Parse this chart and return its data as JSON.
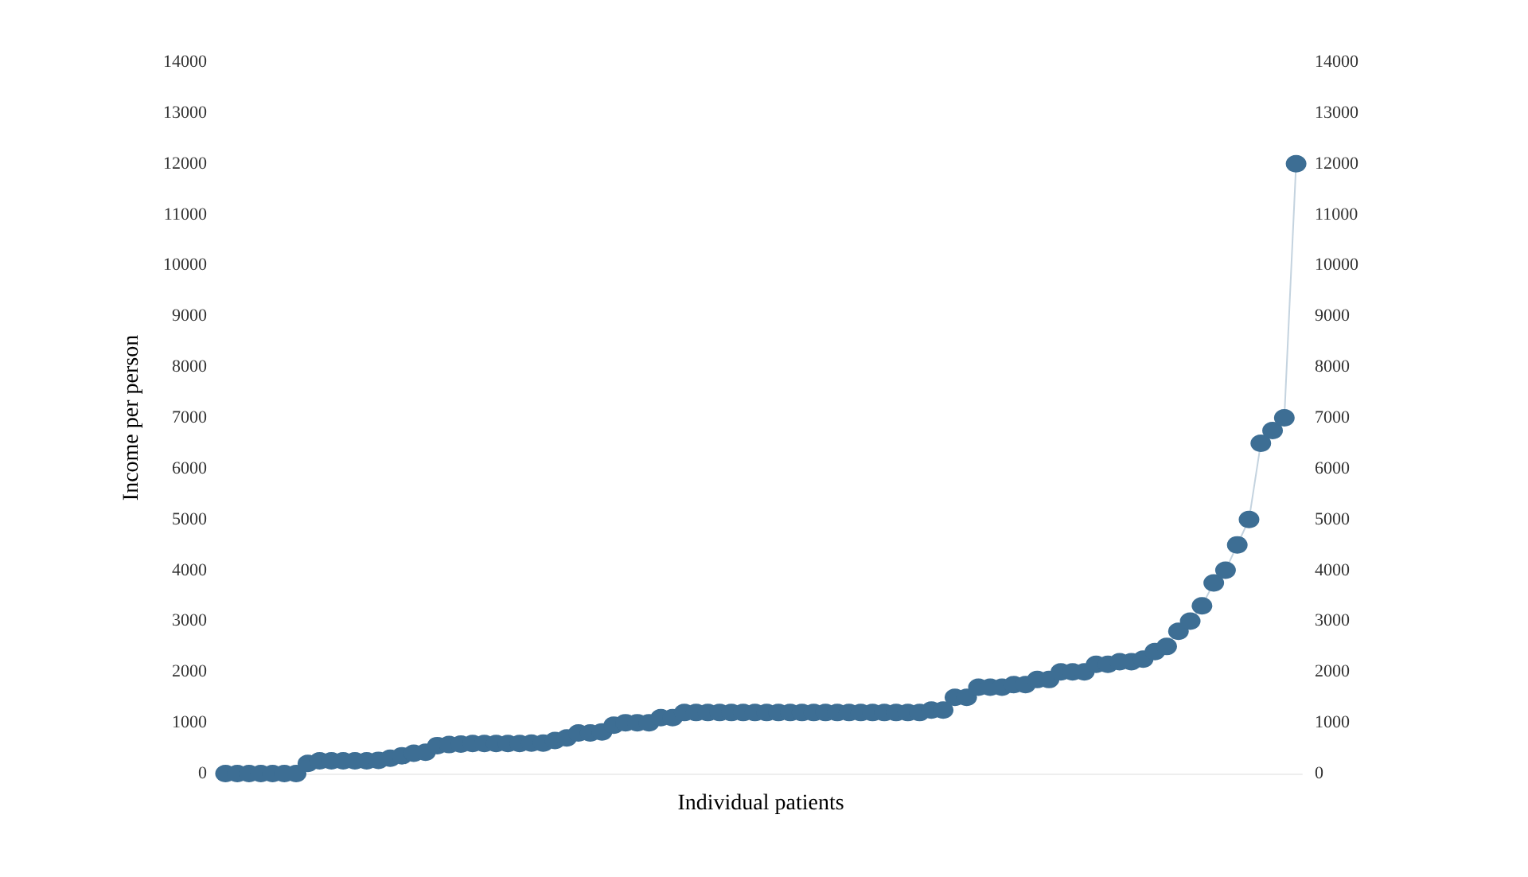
{
  "chart_data": {
    "type": "line",
    "xlabel": "Individual patients",
    "ylabel": "Income per person",
    "categories": [
      null,
      null,
      null,
      null,
      null,
      null,
      null,
      null,
      null,
      null,
      null,
      null,
      null,
      null,
      null,
      null,
      null,
      null,
      null,
      null,
      null,
      null,
      null,
      null,
      null,
      null,
      null,
      null,
      null,
      null,
      null,
      null,
      null,
      null,
      null,
      null,
      null,
      null,
      null,
      null,
      null,
      null,
      null,
      null,
      null,
      null,
      null,
      null,
      null,
      null,
      null,
      null,
      null,
      null,
      null,
      null,
      null,
      null,
      null,
      null,
      null,
      null,
      null,
      null,
      null,
      null,
      null,
      null,
      null,
      null,
      null,
      null,
      null,
      null,
      null,
      null,
      null,
      null,
      null,
      null,
      null,
      null,
      null,
      null,
      null,
      null,
      null,
      null,
      null,
      null,
      null,
      null
    ],
    "series": [
      {
        "color": "#3d6e94",
        "values": [
          0,
          0,
          0,
          0,
          0,
          0,
          0,
          200,
          250,
          250,
          250,
          250,
          250,
          260,
          300,
          350,
          400,
          420,
          550,
          570,
          580,
          590,
          590,
          590,
          590,
          590,
          600,
          600,
          650,
          700,
          800,
          800,
          820,
          950,
          1000,
          1000,
          1000,
          1100,
          1100,
          1200,
          1200,
          1200,
          1200,
          1200,
          1200,
          1200,
          1200,
          1200,
          1200,
          1200,
          1200,
          1200,
          1200,
          1200,
          1200,
          1200,
          1200,
          1200,
          1200,
          1200,
          1250,
          1250,
          1500,
          1500,
          1700,
          1700,
          1700,
          1750,
          1750,
          1850,
          1850,
          2000,
          2000,
          2000,
          2150,
          2150,
          2200,
          2200,
          2250,
          2400,
          2500,
          2800,
          3000,
          3300,
          3750,
          4000,
          4500,
          5000,
          6500,
          6750,
          7000,
          12000
        ]
      }
    ],
    "marker": "circle",
    "grid": false,
    "ylim": [
      0,
      14000
    ],
    "yticks": [
      0,
      1000,
      2000,
      3000,
      4000,
      5000,
      6000,
      7000,
      8000,
      9000,
      10000,
      11000,
      12000,
      13000,
      14000
    ],
    "y2lim": [
      0,
      14000
    ],
    "y2ticks": [
      0,
      1000,
      2000,
      3000,
      4000,
      5000,
      6000,
      7000,
      8000,
      9000,
      10000,
      11000,
      12000,
      13000,
      14000
    ]
  }
}
